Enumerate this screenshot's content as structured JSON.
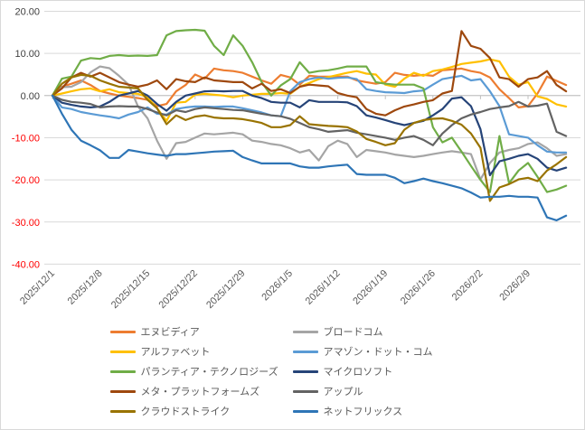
{
  "chart": {
    "background": "#ffffff",
    "border_color": "#d9d9d9",
    "gridline_color": "#d9d9d9",
    "axis_line_color": "#bfbfbf",
    "y_label_color_positive": "#404040",
    "y_label_color_negative": "#ff0000",
    "x_label_color": "#595959",
    "legend_text_color": "#595959"
  },
  "chart_data": {
    "type": "line",
    "title": "",
    "xlabel": "",
    "ylabel": "",
    "ylim": [
      -40,
      20
    ],
    "grid": true,
    "legend_position": "bottom-two-columns",
    "y_ticks": [
      {
        "value": 20,
        "label": "20.00"
      },
      {
        "value": 10,
        "label": "10.00"
      },
      {
        "value": 0,
        "label": "0.00"
      },
      {
        "value": -10,
        "label": "-10.00"
      },
      {
        "value": -20,
        "label": "-20.00"
      },
      {
        "value": -30,
        "label": "-30.00"
      },
      {
        "value": -40,
        "label": "-40.00"
      }
    ],
    "x_tick_labels": [
      "2025/12/1",
      "2025/12/8",
      "2025/12/15",
      "2025/12/22",
      "2025/12/29",
      "2026/1/5",
      "2026/1/12",
      "2026/1/19",
      "2026/1/26",
      "2026/2/2",
      "2026/2/9"
    ],
    "x_tick_every": 5,
    "x": [
      "2025/12/1",
      "2025/12/2",
      "2025/12/3",
      "2025/12/4",
      "2025/12/5",
      "2025/12/8",
      "2025/12/9",
      "2025/12/10",
      "2025/12/11",
      "2025/12/12",
      "2025/12/15",
      "2025/12/16",
      "2025/12/17",
      "2025/12/18",
      "2025/12/19",
      "2025/12/22",
      "2025/12/23",
      "2025/12/24",
      "2025/12/25",
      "2025/12/26",
      "2025/12/29",
      "2025/12/30",
      "2025/12/31",
      "2026/1/1",
      "2026/1/2",
      "2026/1/5",
      "2026/1/6",
      "2026/1/7",
      "2026/1/8",
      "2026/1/9",
      "2026/1/12",
      "2026/1/13",
      "2026/1/14",
      "2026/1/15",
      "2026/1/16",
      "2026/1/19",
      "2026/1/20",
      "2026/1/21",
      "2026/1/22",
      "2026/1/23",
      "2026/1/26",
      "2026/1/27",
      "2026/1/28",
      "2026/1/29",
      "2026/1/30",
      "2026/2/2",
      "2026/2/3",
      "2026/2/4",
      "2026/2/5",
      "2026/2/6",
      "2026/2/9",
      "2026/2/10",
      "2026/2/11",
      "2026/2/12",
      "2026/2/13"
    ],
    "series": [
      {
        "name": "エヌビディア",
        "color": "#ED7D31",
        "values": [
          0,
          2.1,
          2.8,
          3.6,
          2.5,
          1.1,
          0.5,
          0,
          -0.3,
          -0.6,
          -1.0,
          -2.5,
          -2.0,
          1.0,
          2.5,
          5.0,
          4.0,
          6.4,
          6.0,
          5.8,
          5.4,
          4.5,
          3.6,
          2.8,
          4.9,
          4.3,
          2.6,
          4.7,
          4.5,
          4.5,
          4.5,
          4.5,
          3.6,
          3.2,
          2.8,
          3.2,
          5.4,
          4.9,
          4.7,
          4.9,
          4.7,
          6.0,
          6.2,
          6.4,
          5.8,
          5.4,
          4.3,
          1.5,
          -0.6,
          -2.8,
          -2.5,
          0.5,
          4.5,
          3.5,
          2.5
        ]
      },
      {
        "name": "ブロードコム",
        "color": "#A5A5A5",
        "values": [
          0,
          2.0,
          2.1,
          3.2,
          5.5,
          6.9,
          6.5,
          4.7,
          2.6,
          -2.6,
          -5.4,
          -10.7,
          -15.0,
          -11.3,
          -11.0,
          -10.0,
          -9.0,
          -9.2,
          -9.0,
          -8.8,
          -9.2,
          -10.7,
          -11.0,
          -11.5,
          -11.8,
          -12.5,
          -13.5,
          -12.9,
          -15.4,
          -12.0,
          -10.7,
          -11.5,
          -14.6,
          -12.9,
          -13.2,
          -13.5,
          -14.0,
          -14.3,
          -14.6,
          -14.3,
          -13.9,
          -13.5,
          -13.2,
          -13.5,
          -13.9,
          -19.9,
          -16.0,
          -13.5,
          -12.9,
          -12.5,
          -11.5,
          -11.1,
          -12.5,
          -14.3,
          -13.9
        ]
      },
      {
        "name": "アルファベット",
        "color": "#FFC000",
        "values": [
          0,
          0.5,
          1.0,
          1.5,
          1.7,
          1.0,
          1.5,
          0.8,
          0.6,
          0.4,
          -0.4,
          -3.0,
          -6.0,
          -1.7,
          -1.5,
          0.2,
          0.4,
          0.2,
          0,
          -0.4,
          0,
          0.2,
          0.4,
          0.4,
          0.6,
          0.4,
          2.1,
          3.0,
          3.9,
          4.4,
          4.9,
          5.4,
          5.8,
          5.2,
          5.0,
          2.6,
          2.1,
          4.0,
          5.4,
          4.7,
          5.8,
          6.2,
          6.8,
          7.5,
          7.8,
          8.1,
          8.6,
          8.1,
          4.5,
          2.6,
          3.2,
          -0.2,
          -0.8,
          -2.1,
          -2.6
        ]
      },
      {
        "name": "アマゾン・ドット・コム",
        "color": "#5B9BD5",
        "values": [
          0,
          -2.8,
          -3.2,
          -3.9,
          -4.3,
          -4.7,
          -5.0,
          -5.4,
          -4.5,
          -3.9,
          -2.8,
          -4.3,
          -4.5,
          -3.2,
          -2.8,
          -2.6,
          -2.6,
          -2.7,
          -2.6,
          -2.6,
          -3.0,
          -3.5,
          -4.0,
          -4.7,
          -4.9,
          1.0,
          3.2,
          3.9,
          4.3,
          4.0,
          4.2,
          4.3,
          3.9,
          1.5,
          1.1,
          0.8,
          0.7,
          0.6,
          1.0,
          1.2,
          2.6,
          3.9,
          4.3,
          4.7,
          3.6,
          3.9,
          1.0,
          -2.5,
          -9.2,
          -9.6,
          -10.0,
          -11.8,
          -13.3,
          -13.5,
          -13.5
        ]
      },
      {
        "name": "パランティア・テクノロジーズ",
        "color": "#70AD47",
        "values": [
          0,
          4.0,
          4.5,
          8.3,
          8.9,
          8.7,
          9.4,
          9.6,
          9.4,
          9.5,
          9.4,
          9.6,
          14.3,
          15.3,
          15.5,
          15.6,
          15.4,
          11.8,
          9.6,
          14.3,
          11.8,
          7.9,
          3.2,
          0,
          2.4,
          3.9,
          7.9,
          5.4,
          5.8,
          6.0,
          6.4,
          6.9,
          6.9,
          6.9,
          3.2,
          2.8,
          2.6,
          2.6,
          2.6,
          1.7,
          -7.5,
          -11.1,
          -10.0,
          -13.3,
          -16.7,
          -20.0,
          -22.9,
          -9.6,
          -20.8,
          -17.8,
          -16.0,
          -19.3,
          -22.9,
          -22.3,
          -21.4
        ]
      },
      {
        "name": "マイクロソフト",
        "color": "#264478",
        "values": [
          0,
          -1.7,
          -2.2,
          -2.6,
          -2.8,
          -2.6,
          -1.5,
          0,
          0.5,
          1.1,
          0,
          -2.0,
          -3.6,
          -1.5,
          0,
          0.5,
          1.0,
          1.1,
          1.0,
          1.1,
          1.1,
          0,
          -0.6,
          -1.5,
          -1.7,
          -1.7,
          -2.8,
          -1.1,
          -1.5,
          -1.5,
          -1.5,
          -1.6,
          -2.5,
          -4.7,
          -5.2,
          -5.8,
          -6.5,
          -7.0,
          -6.5,
          -6.0,
          -4.7,
          -3.2,
          -0.7,
          -0.4,
          -2.5,
          -8.0,
          -18.9,
          -15.6,
          -15.0,
          -14.3,
          -13.9,
          -15.0,
          -17.1,
          -17.8,
          -17.1
        ]
      },
      {
        "name": "メタ・プラットフォームズ",
        "color": "#9E480E",
        "values": [
          0,
          1.7,
          4.3,
          5.4,
          4.5,
          5.4,
          4.3,
          3.2,
          2.6,
          2.1,
          2.6,
          3.6,
          1.5,
          3.9,
          3.4,
          3.2,
          4.3,
          3.6,
          3.4,
          3.2,
          3.2,
          1.7,
          2.8,
          1.1,
          1.5,
          0.6,
          2.1,
          2.6,
          2.4,
          2.2,
          0.6,
          0,
          -0.4,
          -3.2,
          -4.3,
          -4.7,
          -3.5,
          -2.6,
          -2.1,
          -1.5,
          -1.1,
          0.5,
          1.1,
          15.3,
          11.8,
          11.1,
          8.9,
          4.3,
          3.9,
          2.1,
          3.9,
          4.3,
          5.8,
          2.5,
          1.0
        ]
      },
      {
        "name": "アップル",
        "color": "#636363",
        "values": [
          0,
          -1.0,
          -1.5,
          -1.7,
          -2.0,
          -2.8,
          -2.6,
          -2.5,
          -2.6,
          -2.6,
          -3.2,
          -4.0,
          -4.7,
          -3.5,
          -3.9,
          -3.2,
          -2.8,
          -3.0,
          -3.2,
          -3.4,
          -3.5,
          -3.9,
          -4.3,
          -4.7,
          -4.9,
          -5.5,
          -6.5,
          -7.5,
          -8.0,
          -8.6,
          -8.4,
          -8.2,
          -8.8,
          -9.2,
          -9.6,
          -10.0,
          -10.5,
          -10.0,
          -9.6,
          -10.5,
          -11.8,
          -9.0,
          -7.0,
          -5.4,
          -4.5,
          -3.9,
          -3.2,
          -2.8,
          -2.5,
          -1.5,
          -2.6,
          -2.4,
          -1.9,
          -8.6,
          -9.6
        ]
      },
      {
        "name": "クラウドストライク",
        "color": "#997300",
        "values": [
          0,
          2.8,
          4.3,
          4.9,
          4.7,
          3.6,
          2.8,
          2.1,
          1.9,
          1.7,
          -1.0,
          -3.0,
          -6.8,
          -4.7,
          -5.8,
          -5.0,
          -4.7,
          -5.2,
          -5.4,
          -5.4,
          -5.6,
          -6.0,
          -6.5,
          -7.5,
          -7.5,
          -7.0,
          -4.9,
          -6.8,
          -7.0,
          -7.2,
          -7.3,
          -7.5,
          -8.5,
          -10.3,
          -11.0,
          -11.8,
          -11.3,
          -8.1,
          -6.5,
          -5.8,
          -5.5,
          -5.4,
          -6.0,
          -6.9,
          -9.0,
          -12.4,
          -25.0,
          -21.8,
          -21.0,
          -19.9,
          -19.5,
          -20.3,
          -17.8,
          -16.3,
          -14.6
        ]
      },
      {
        "name": "ネットフリックス",
        "color": "#2E75B6",
        "values": [
          0,
          -4.3,
          -8.1,
          -10.7,
          -11.8,
          -13.0,
          -14.8,
          -14.8,
          -12.9,
          -13.3,
          -13.7,
          -14.0,
          -14.3,
          -13.9,
          -13.9,
          -13.7,
          -13.5,
          -13.3,
          -13.2,
          -13.1,
          -14.6,
          -15.4,
          -16.1,
          -16.1,
          -16.1,
          -16.1,
          -16.8,
          -17.1,
          -17.1,
          -16.8,
          -16.6,
          -16.4,
          -18.6,
          -18.8,
          -18.8,
          -18.8,
          -19.5,
          -20.8,
          -20.3,
          -19.7,
          -20.3,
          -20.8,
          -21.4,
          -22.0,
          -23.0,
          -24.2,
          -24.0,
          -24.0,
          -23.8,
          -24.0,
          -24.0,
          -24.2,
          -28.9,
          -29.6,
          -28.5
        ]
      }
    ]
  }
}
